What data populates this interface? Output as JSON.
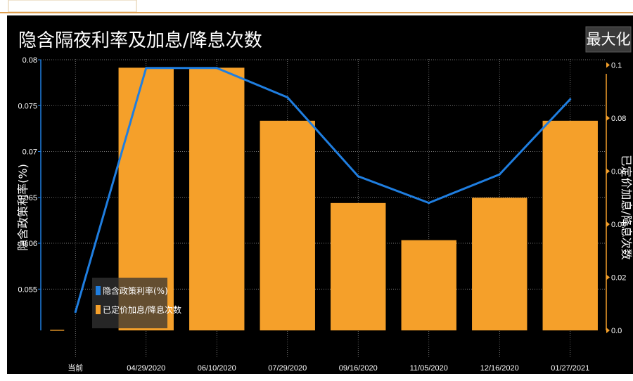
{
  "title": "隐含隔夜利率及加息/降息次数",
  "maximize_label": "最大化",
  "colors": {
    "background": "#000000",
    "line": "#1f7ee0",
    "bar": "#f5a02a",
    "axis_left": "#1f7ee0",
    "axis_right": "#f5a02a",
    "accent_rule": "#e0a050"
  },
  "chart_data": {
    "type": "bar",
    "categories": [
      "当前",
      "04/29/2020",
      "06/10/2020",
      "07/29/2020",
      "09/16/2020",
      "11/05/2020",
      "12/16/2020",
      "01/27/2021"
    ],
    "series": [
      {
        "name": "隐含政策利率(%)",
        "type": "line",
        "axis": "left",
        "values": [
          0.0525,
          0.0791,
          0.0791,
          0.0759,
          0.0673,
          0.0644,
          0.0675,
          0.0757
        ]
      },
      {
        "name": "已定价加息/降息次数",
        "type": "bar",
        "axis": "right",
        "values": [
          0.0,
          0.099,
          0.099,
          0.079,
          0.048,
          0.034,
          0.05,
          0.079
        ]
      }
    ],
    "ylabel": "隐含政策利率(%)",
    "y2label": "已定价加息/降息次数",
    "ylim": [
      0.0505,
      0.08
    ],
    "y2lim": [
      0.0,
      0.102
    ],
    "yticks": [
      "0.08",
      "0.075",
      "0.07",
      "0.065",
      "0.06",
      "0.055"
    ],
    "y2ticks": [
      "0.1",
      "0.08",
      "0.06",
      "0.04",
      "0.02",
      "0.0"
    ],
    "grid": true,
    "legend_position": "bottom-left"
  }
}
